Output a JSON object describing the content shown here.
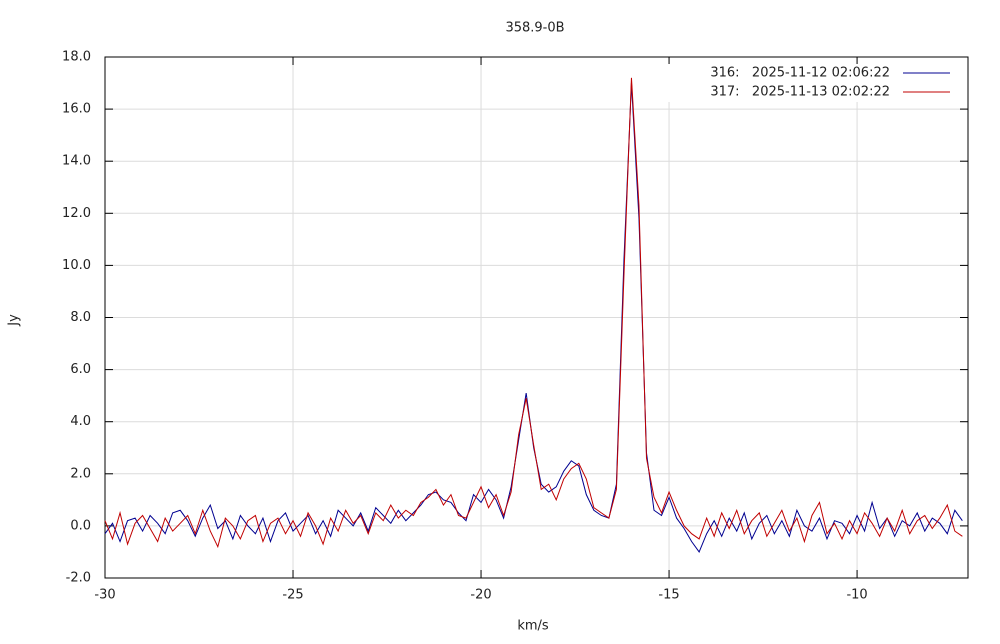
{
  "chart_data": {
    "type": "line",
    "title": "358.9-0B",
    "x_label": "km/s",
    "y_label": "Jy",
    "x": [
      -30,
      -29.8,
      -29.6,
      -29.4,
      -29.2,
      -29,
      -28.8,
      -28.6,
      -28.4,
      -28.2,
      -28,
      -27.8,
      -27.6,
      -27.4,
      -27.2,
      -27,
      -26.8,
      -26.6,
      -26.4,
      -26.2,
      -26,
      -25.8,
      -25.6,
      -25.4,
      -25.2,
      -25,
      -24.8,
      -24.6,
      -24.4,
      -24.2,
      -24,
      -23.8,
      -23.6,
      -23.4,
      -23.2,
      -23,
      -22.8,
      -22.6,
      -22.4,
      -22.2,
      -22,
      -21.8,
      -21.6,
      -21.4,
      -21.2,
      -21,
      -20.8,
      -20.6,
      -20.4,
      -20.2,
      -20,
      -19.8,
      -19.6,
      -19.4,
      -19.2,
      -19,
      -18.8,
      -18.6,
      -18.4,
      -18.2,
      -18,
      -17.8,
      -17.6,
      -17.4,
      -17.2,
      -17,
      -16.8,
      -16.6,
      -16.4,
      -16.2,
      -16,
      -15.8,
      -15.6,
      -15.4,
      -15.2,
      -15,
      -14.8,
      -14.6,
      -14.4,
      -14.2,
      -14,
      -13.8,
      -13.6,
      -13.4,
      -13.2,
      -13,
      -12.8,
      -12.6,
      -12.4,
      -12.2,
      -12,
      -11.8,
      -11.6,
      -11.4,
      -11.2,
      -11,
      -10.8,
      -10.6,
      -10.4,
      -10.2,
      -10,
      -9.8,
      -9.6,
      -9.4,
      -9.2,
      -9,
      -8.8,
      -8.6,
      -8.4,
      -8.2,
      -8,
      -7.8,
      -7.6,
      -7.4,
      -7.2
    ],
    "series": [
      {
        "name": "316:   2025-11-12 02:06:22",
        "color": "#000090",
        "values": [
          -0.3,
          0.1,
          -0.6,
          0.2,
          0.3,
          -0.2,
          0.4,
          0.1,
          -0.3,
          0.5,
          0.6,
          0.2,
          -0.4,
          0.3,
          0.8,
          -0.1,
          0.2,
          -0.5,
          0.4,
          0.0,
          -0.3,
          0.3,
          -0.6,
          0.2,
          0.5,
          -0.2,
          0.1,
          0.4,
          -0.3,
          0.2,
          -0.4,
          0.6,
          0.3,
          0.0,
          0.5,
          -0.2,
          0.7,
          0.4,
          0.1,
          0.6,
          0.2,
          0.5,
          0.8,
          1.2,
          1.3,
          1.0,
          0.9,
          0.5,
          0.2,
          1.2,
          0.9,
          1.4,
          1.0,
          0.3,
          1.5,
          3.3,
          5.1,
          3.0,
          1.6,
          1.3,
          1.5,
          2.1,
          2.5,
          2.3,
          1.2,
          0.6,
          0.4,
          0.3,
          1.6,
          10.2,
          17.0,
          11.8,
          2.8,
          0.6,
          0.4,
          1.1,
          0.3,
          -0.1,
          -0.6,
          -1.0,
          -0.3,
          0.2,
          -0.4,
          0.3,
          -0.2,
          0.5,
          -0.5,
          0.1,
          0.4,
          -0.3,
          0.2,
          -0.4,
          0.6,
          0.0,
          -0.2,
          0.3,
          -0.5,
          0.2,
          0.1,
          -0.3,
          0.4,
          -0.2,
          0.9,
          -0.1,
          0.3,
          -0.4,
          0.2,
          0.0,
          0.5,
          -0.2,
          0.3,
          0.1,
          -0.3,
          0.6,
          0.2
        ]
      },
      {
        "name": "317:   2025-11-13 02:02:22",
        "color": "#c00000",
        "values": [
          0.2,
          -0.5,
          0.5,
          -0.7,
          0.1,
          0.4,
          -0.1,
          -0.6,
          0.3,
          -0.2,
          0.1,
          0.4,
          -0.3,
          0.6,
          -0.2,
          -0.8,
          0.3,
          0.0,
          -0.5,
          0.2,
          0.4,
          -0.6,
          0.1,
          0.3,
          -0.3,
          0.2,
          -0.4,
          0.5,
          0.0,
          -0.7,
          0.3,
          -0.2,
          0.6,
          0.1,
          0.4,
          -0.3,
          0.5,
          0.2,
          0.8,
          0.3,
          0.6,
          0.4,
          0.9,
          1.1,
          1.4,
          0.8,
          1.2,
          0.4,
          0.3,
          0.9,
          1.5,
          0.7,
          1.2,
          0.4,
          1.3,
          3.5,
          4.9,
          3.1,
          1.4,
          1.6,
          1.0,
          1.8,
          2.2,
          2.4,
          1.8,
          0.7,
          0.5,
          0.3,
          1.4,
          9.6,
          17.2,
          12.3,
          2.6,
          1.1,
          0.5,
          1.3,
          0.6,
          0.0,
          -0.3,
          -0.5,
          0.3,
          -0.4,
          0.5,
          -0.1,
          0.6,
          -0.3,
          0.2,
          0.5,
          -0.4,
          0.1,
          0.6,
          -0.2,
          0.3,
          -0.6,
          0.4,
          0.9,
          -0.3,
          0.1,
          -0.5,
          0.2,
          -0.3,
          0.5,
          0.1,
          -0.4,
          0.3,
          -0.2,
          0.6,
          -0.3,
          0.2,
          0.4,
          -0.1,
          0.3,
          0.8,
          -0.2,
          -0.4
        ]
      }
    ],
    "xlim": [
      -30,
      -7.05
    ],
    "ylim": [
      -2,
      18
    ],
    "xticks": [
      -30,
      -25,
      -20,
      -15,
      -10
    ],
    "yticks": [
      {
        "value": -2,
        "label": "-2.0"
      },
      {
        "value": 0,
        "label": "0.0"
      },
      {
        "value": 2,
        "label": "2.0"
      },
      {
        "value": 4,
        "label": "4.0"
      },
      {
        "value": 6,
        "label": "6.0"
      },
      {
        "value": 8,
        "label": "8.0"
      },
      {
        "value": 10,
        "label": "10.0"
      },
      {
        "value": 12,
        "label": "12.0"
      },
      {
        "value": 14,
        "label": "14.0"
      },
      {
        "value": 16,
        "label": "16.0"
      },
      {
        "value": 18,
        "label": "18.0"
      }
    ],
    "grid": true,
    "legend": "upper right"
  }
}
